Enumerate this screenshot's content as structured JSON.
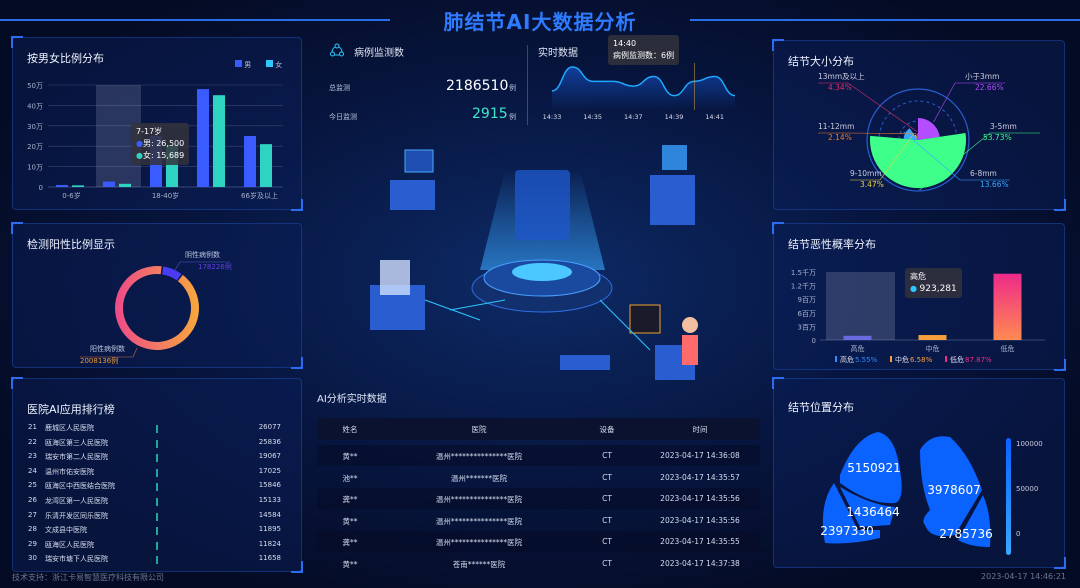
{
  "header": {
    "title": "肺结节AI大数据分析"
  },
  "gender": {
    "title": "按男女比例分布",
    "legend": [
      "男",
      "女"
    ],
    "colors": [
      "#3a5bff",
      "#2ed3c2"
    ],
    "chart_data": {
      "type": "bar",
      "categories": [
        "0-6岁",
        "7-17岁",
        "18-40岁",
        "",
        "66岁及以上"
      ],
      "series": [
        {
          "name": "男",
          "values": [
            10000,
            26500,
            250000,
            480000,
            250000
          ]
        },
        {
          "name": "女",
          "values": [
            8000,
            15689,
            205000,
            450000,
            210000
          ]
        }
      ],
      "ytick_labels": [
        "0",
        "10万",
        "20万",
        "30万",
        "40万",
        "50万"
      ],
      "ylim": [
        0,
        500000
      ],
      "xtick_labels": [
        "0-6岁",
        "18-40岁",
        "66岁及以上"
      ],
      "grid": true
    },
    "tooltip": {
      "title": "7-17岁",
      "male": "男: 26,500",
      "female": "女: 15,689"
    }
  },
  "positive": {
    "title": "检测阳性比例显示",
    "chart_data": {
      "type": "pie",
      "donut": true,
      "slices": [
        {
          "label": "阴性病例数",
          "value": 178226,
          "text": "178226例",
          "color": "#4a3cf0"
        },
        {
          "label": "阳性病例数",
          "value": 2008136,
          "text": "2008136例",
          "color": "#f8a83c"
        }
      ]
    }
  },
  "ranking": {
    "title": "医院AI应用排行榜",
    "rows": [
      {
        "rank": "21",
        "name": "鹿城区人民医院",
        "value": "26077"
      },
      {
        "rank": "22",
        "name": "瓯海区第三人民医院",
        "value": "25836"
      },
      {
        "rank": "23",
        "name": "瑞安市第二人民医院",
        "value": "19067"
      },
      {
        "rank": "24",
        "name": "温州市佑安医院",
        "value": "17025"
      },
      {
        "rank": "25",
        "name": "瓯海区中西医结合医院",
        "value": "15846"
      },
      {
        "rank": "26",
        "name": "龙湾区第一人民医院",
        "value": "15133"
      },
      {
        "rank": "27",
        "name": "乐清开发区同乐医院",
        "value": "14584"
      },
      {
        "rank": "28",
        "name": "文成县中医院",
        "value": "11895"
      },
      {
        "rank": "29",
        "name": "瓯海区人民医院",
        "value": "11824"
      },
      {
        "rank": "30",
        "name": "瑞安市塘下人民医院",
        "value": "11658"
      }
    ]
  },
  "monitor": {
    "title": "病例监测数",
    "total_label": "总监测",
    "total_value": "2186510",
    "today_label": "今日监测",
    "today_value": "2915",
    "unit": "例"
  },
  "realtime": {
    "title": "实时数据",
    "tooltip_time": "14:40",
    "tooltip_text": "病例监测数：6例",
    "chart_data": {
      "type": "area",
      "x": [
        "14:33",
        "14:34",
        "14:35",
        "14:36",
        "14:37",
        "14:38",
        "14:39",
        "14:40",
        "14:41",
        "14:42"
      ],
      "values": [
        4,
        9,
        6,
        6,
        5,
        7,
        3,
        6,
        7,
        3
      ],
      "xtick_labels": [
        "14:33",
        "14:35",
        "14:37",
        "14:39",
        "14:41"
      ]
    }
  },
  "table": {
    "title": "AI分析实时数据",
    "headers": [
      "姓名",
      "医院",
      "设备",
      "时间"
    ],
    "rows": [
      [
        "黄**",
        "温州***************医院",
        "CT",
        "2023-04-17 14:36:08"
      ],
      [
        "池**",
        "温州*******医院",
        "CT",
        "2023-04-17 14:35:57"
      ],
      [
        "龚**",
        "温州***************医院",
        "CT",
        "2023-04-17 14:35:56"
      ],
      [
        "黄**",
        "温州***************医院",
        "CT",
        "2023-04-17 14:35:56"
      ],
      [
        "龚**",
        "温州***************医院",
        "CT",
        "2023-04-17 14:35:55"
      ],
      [
        "黄**",
        "苍南******医院",
        "CT",
        "2023-04-17 14:37:38"
      ]
    ]
  },
  "size": {
    "title": "结节大小分布",
    "chart_data": {
      "type": "pie",
      "rose": true,
      "slices": [
        {
          "label": "小于3mm",
          "value": 22.66,
          "text": "22.66%",
          "color": "#b44cff"
        },
        {
          "label": "3-5mm",
          "value": 53.73,
          "text": "53.73%",
          "color": "#3dff8a"
        },
        {
          "label": "6-8mm",
          "value": 13.66,
          "text": "13.66%",
          "color": "#3aa8ff"
        },
        {
          "label": "9-10mm",
          "value": 3.47,
          "text": "3.47%",
          "color": "#e8d23a"
        },
        {
          "label": "11-12mm",
          "value": 2.14,
          "text": "2.14%",
          "color": "#f07a2a"
        },
        {
          "label": "13mm及以上",
          "value": 4.34,
          "text": "4.34%",
          "color": "#e0306a"
        }
      ]
    }
  },
  "malignancy": {
    "title": "结节恶性概率分布",
    "chart_data": {
      "type": "bar",
      "categories": [
        "高危",
        "中危",
        "低危"
      ],
      "values": [
        923281,
        1095000,
        14620000
      ],
      "ytick_labels": [
        "0",
        "3百万",
        "6百万",
        "9百万",
        "1.2千万",
        "1.5千万"
      ],
      "ylim": [
        0,
        15000000
      ],
      "legend": [
        {
          "label": "高危",
          "pct": "5.55%",
          "color": "#2f8cff"
        },
        {
          "label": "中危",
          "pct": "6.58%",
          "color": "#f5a03c"
        },
        {
          "label": "低危",
          "pct": "87.87%",
          "color": "#ee2a8a"
        }
      ]
    },
    "tooltip": {
      "title": "高危",
      "value": "923,281"
    }
  },
  "location": {
    "title": "结节位置分布",
    "values": [
      "5150921",
      "1436464",
      "2397330",
      "3978607",
      "2785736"
    ],
    "scale": [
      "100000",
      "50000",
      "0"
    ],
    "color": "#0a62ff"
  },
  "footer": {
    "support": "技术支持：浙江卡易智慧医疗科技有限公司",
    "datetime": "2023-04-17 14:46:21"
  }
}
